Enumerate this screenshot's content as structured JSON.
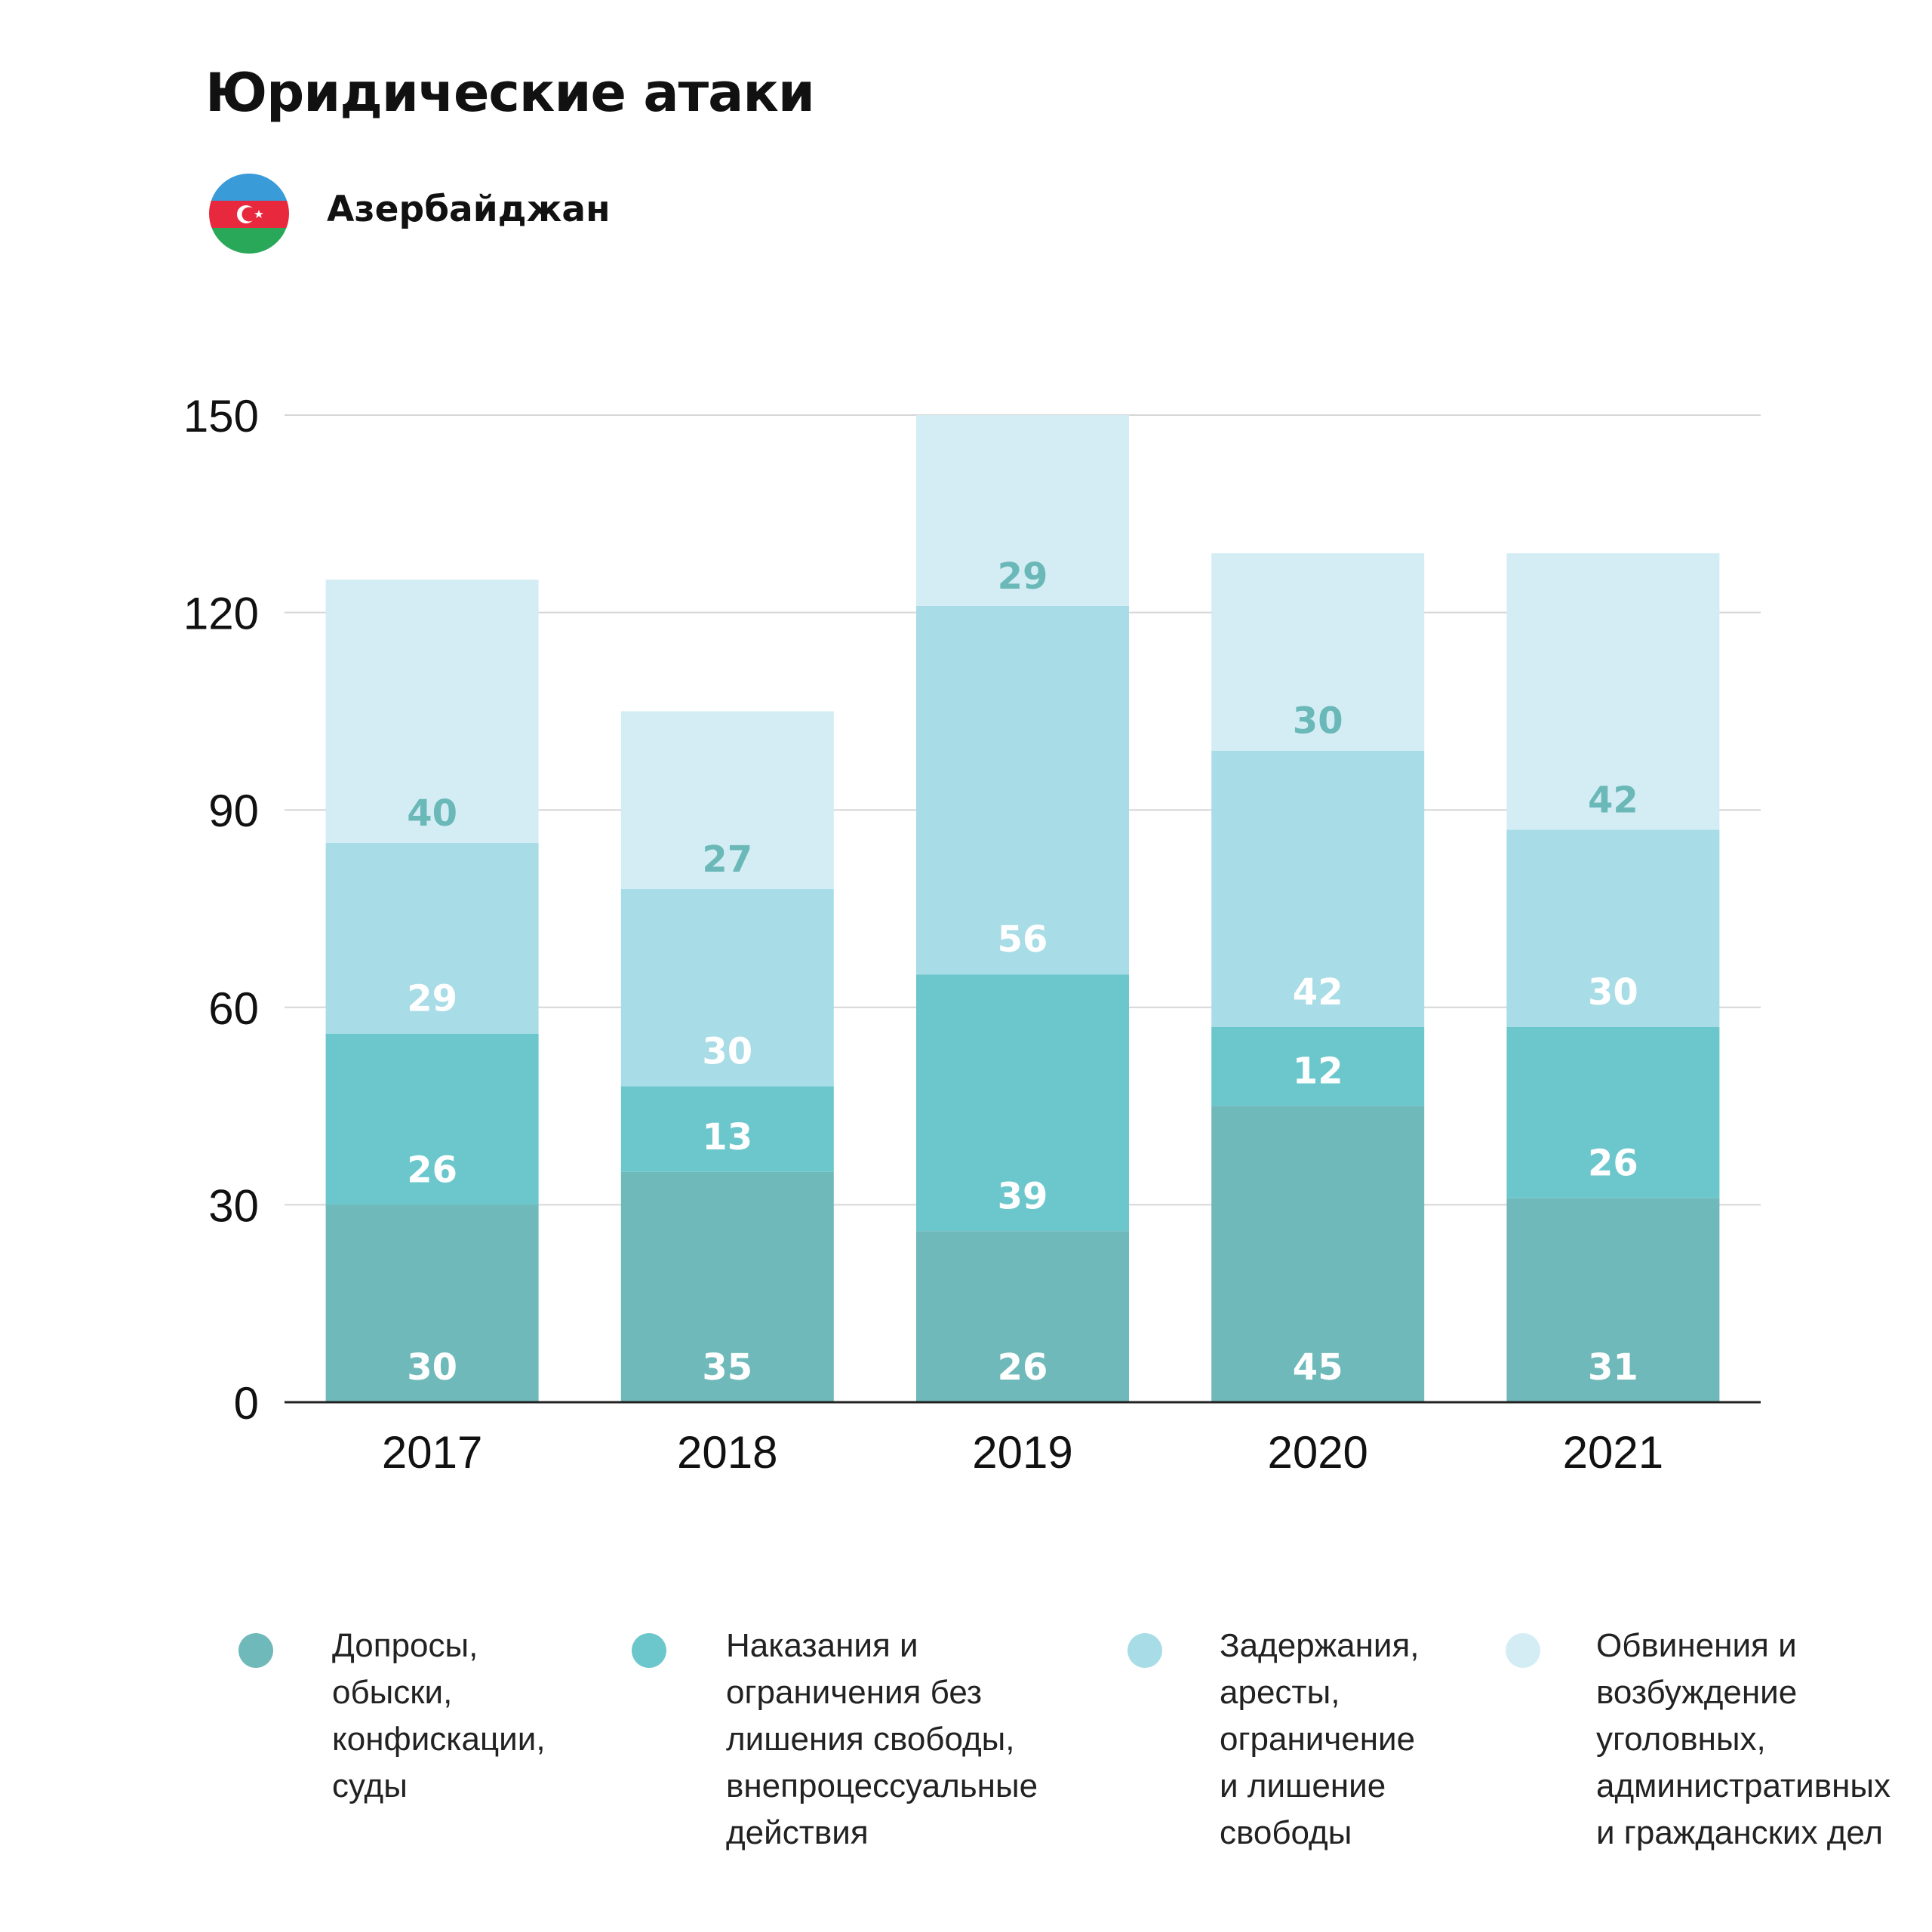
{
  "header": {
    "title": "Юридические атаки",
    "country": "Азербайджан"
  },
  "colors": {
    "series": [
      "#70b9ba",
      "#6bc7cc",
      "#a8dce6",
      "#d4edf5"
    ],
    "label_dark": "#6bb8b8",
    "label_light": "#ffffff",
    "grid": "#d6d6d6",
    "axis": "#222222",
    "flag_blue": "#3a9bd9",
    "flag_red": "#e8283c",
    "flag_green": "#2aa85a"
  },
  "chart_data": {
    "type": "bar",
    "stacked": true,
    "categories": [
      "2017",
      "2018",
      "2019",
      "2020",
      "2021"
    ],
    "ylim": [
      0,
      150
    ],
    "yticks": [
      0,
      30,
      60,
      90,
      120,
      150
    ],
    "grid": true,
    "legend_position": "bottom",
    "series": [
      {
        "name": "Допросы, обыски, конфискации, суды",
        "values": [
          30,
          35,
          26,
          45,
          31
        ]
      },
      {
        "name": "Наказания и ограничения без лишения свободы, внепроцессуальные действия",
        "values": [
          26,
          13,
          39,
          12,
          26
        ]
      },
      {
        "name": "Задержания, аресты, ограничение и лишение свободы",
        "values": [
          29,
          30,
          56,
          42,
          30
        ]
      },
      {
        "name": "Обвинения и возбуждение уголовных, административных и гражданских дел",
        "values": [
          40,
          27,
          29,
          30,
          42
        ]
      }
    ]
  },
  "legend": [
    {
      "lines": [
        "Допросы,",
        "обыски,",
        "конфискации,",
        "суды"
      ]
    },
    {
      "lines": [
        "Наказания и",
        "ограничения без",
        "лишения свободы,",
        "внепроцессуальные",
        "действия"
      ]
    },
    {
      "lines": [
        "Задержания,",
        "аресты,",
        "ограничение",
        "и лишение",
        "свободы"
      ]
    },
    {
      "lines": [
        "Обвинения и",
        "возбуждение",
        "уголовных,",
        "административных",
        "и гражданских дел"
      ]
    }
  ]
}
